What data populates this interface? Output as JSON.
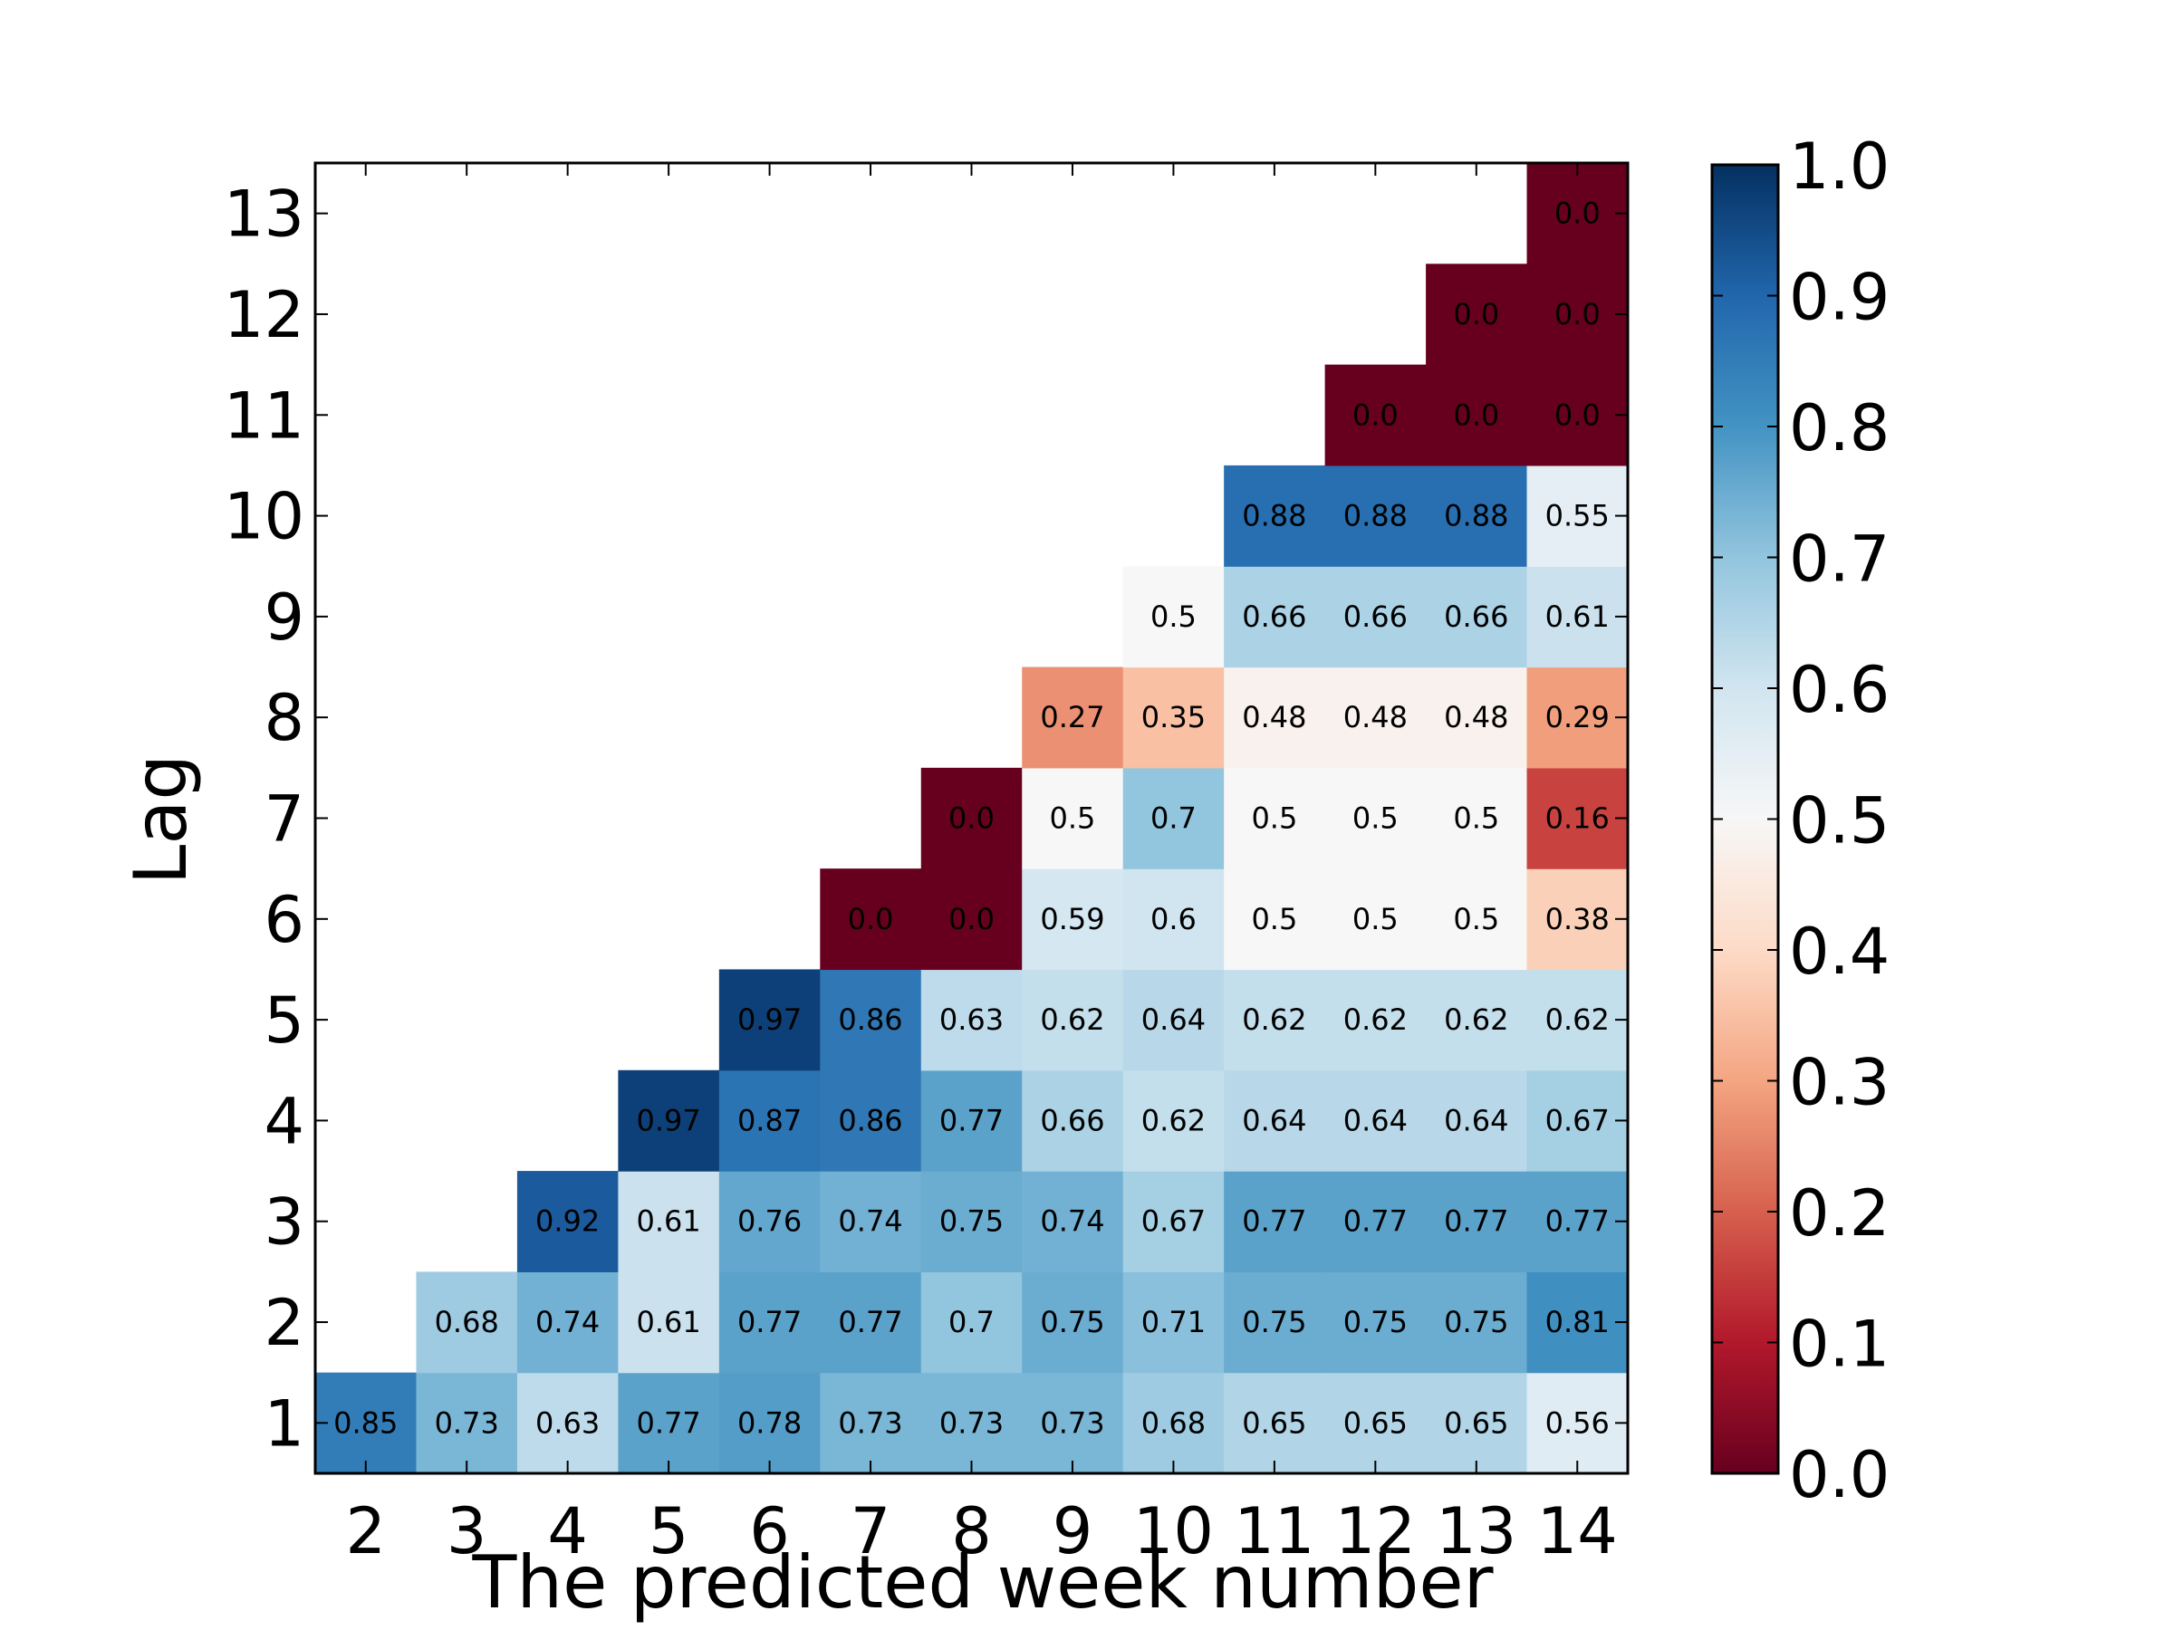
{
  "chart_data": {
    "type": "heatmap",
    "title": "",
    "xlabel": "The predicted week number",
    "ylabel": "Lag",
    "x": [
      2,
      3,
      4,
      5,
      6,
      7,
      8,
      9,
      10,
      11,
      12,
      13,
      14
    ],
    "y": [
      1,
      2,
      3,
      4,
      5,
      6,
      7,
      8,
      9,
      10,
      11,
      12,
      13
    ],
    "colormap": "RdBu",
    "color_range": [
      0.0,
      1.0
    ],
    "colorbar_ticks": [
      "0.0",
      "0.1",
      "0.2",
      "0.3",
      "0.4",
      "0.5",
      "0.6",
      "0.7",
      "0.8",
      "0.9",
      "1.0"
    ],
    "cells": [
      [
        2,
        1,
        "0.85"
      ],
      [
        3,
        1,
        "0.73"
      ],
      [
        3,
        2,
        "0.68"
      ],
      [
        4,
        1,
        "0.63"
      ],
      [
        4,
        2,
        "0.74"
      ],
      [
        4,
        3,
        "0.92"
      ],
      [
        5,
        1,
        "0.77"
      ],
      [
        5,
        2,
        "0.61"
      ],
      [
        5,
        3,
        "0.61"
      ],
      [
        5,
        4,
        "0.97"
      ],
      [
        6,
        1,
        "0.78"
      ],
      [
        6,
        2,
        "0.77"
      ],
      [
        6,
        3,
        "0.76"
      ],
      [
        6,
        4,
        "0.87"
      ],
      [
        6,
        5,
        "0.97"
      ],
      [
        7,
        1,
        "0.73"
      ],
      [
        7,
        2,
        "0.77"
      ],
      [
        7,
        3,
        "0.74"
      ],
      [
        7,
        4,
        "0.86"
      ],
      [
        7,
        5,
        "0.86"
      ],
      [
        7,
        6,
        "0.0"
      ],
      [
        8,
        1,
        "0.73"
      ],
      [
        8,
        2,
        "0.7"
      ],
      [
        8,
        3,
        "0.75"
      ],
      [
        8,
        4,
        "0.77"
      ],
      [
        8,
        5,
        "0.63"
      ],
      [
        8,
        6,
        "0.0"
      ],
      [
        8,
        7,
        "0.0"
      ],
      [
        9,
        1,
        "0.73"
      ],
      [
        9,
        2,
        "0.75"
      ],
      [
        9,
        3,
        "0.74"
      ],
      [
        9,
        4,
        "0.66"
      ],
      [
        9,
        5,
        "0.62"
      ],
      [
        9,
        6,
        "0.59"
      ],
      [
        9,
        7,
        "0.5"
      ],
      [
        9,
        8,
        "0.27"
      ],
      [
        10,
        1,
        "0.68"
      ],
      [
        10,
        2,
        "0.71"
      ],
      [
        10,
        3,
        "0.67"
      ],
      [
        10,
        4,
        "0.62"
      ],
      [
        10,
        5,
        "0.64"
      ],
      [
        10,
        6,
        "0.6"
      ],
      [
        10,
        7,
        "0.7"
      ],
      [
        10,
        8,
        "0.35"
      ],
      [
        10,
        9,
        "0.5"
      ],
      [
        11,
        1,
        "0.65"
      ],
      [
        11,
        2,
        "0.75"
      ],
      [
        11,
        3,
        "0.77"
      ],
      [
        11,
        4,
        "0.64"
      ],
      [
        11,
        5,
        "0.62"
      ],
      [
        11,
        6,
        "0.5"
      ],
      [
        11,
        7,
        "0.5"
      ],
      [
        11,
        8,
        "0.48"
      ],
      [
        11,
        9,
        "0.66"
      ],
      [
        11,
        10,
        "0.88"
      ],
      [
        12,
        1,
        "0.65"
      ],
      [
        12,
        2,
        "0.75"
      ],
      [
        12,
        3,
        "0.77"
      ],
      [
        12,
        4,
        "0.64"
      ],
      [
        12,
        5,
        "0.62"
      ],
      [
        12,
        6,
        "0.5"
      ],
      [
        12,
        7,
        "0.5"
      ],
      [
        12,
        8,
        "0.48"
      ],
      [
        12,
        9,
        "0.66"
      ],
      [
        12,
        10,
        "0.88"
      ],
      [
        12,
        11,
        "0.0"
      ],
      [
        13,
        1,
        "0.65"
      ],
      [
        13,
        2,
        "0.75"
      ],
      [
        13,
        3,
        "0.77"
      ],
      [
        13,
        4,
        "0.64"
      ],
      [
        13,
        5,
        "0.62"
      ],
      [
        13,
        6,
        "0.5"
      ],
      [
        13,
        7,
        "0.5"
      ],
      [
        13,
        8,
        "0.48"
      ],
      [
        13,
        9,
        "0.66"
      ],
      [
        13,
        10,
        "0.88"
      ],
      [
        13,
        11,
        "0.0"
      ],
      [
        13,
        12,
        "0.0"
      ],
      [
        14,
        1,
        "0.56"
      ],
      [
        14,
        2,
        "0.81"
      ],
      [
        14,
        3,
        "0.77"
      ],
      [
        14,
        4,
        "0.67"
      ],
      [
        14,
        5,
        "0.62"
      ],
      [
        14,
        6,
        "0.38"
      ],
      [
        14,
        7,
        "0.16"
      ],
      [
        14,
        8,
        "0.29"
      ],
      [
        14,
        9,
        "0.61"
      ],
      [
        14,
        10,
        "0.55"
      ],
      [
        14,
        11,
        "0.0"
      ],
      [
        14,
        12,
        "0.0"
      ],
      [
        14,
        13,
        "0.0"
      ]
    ]
  }
}
